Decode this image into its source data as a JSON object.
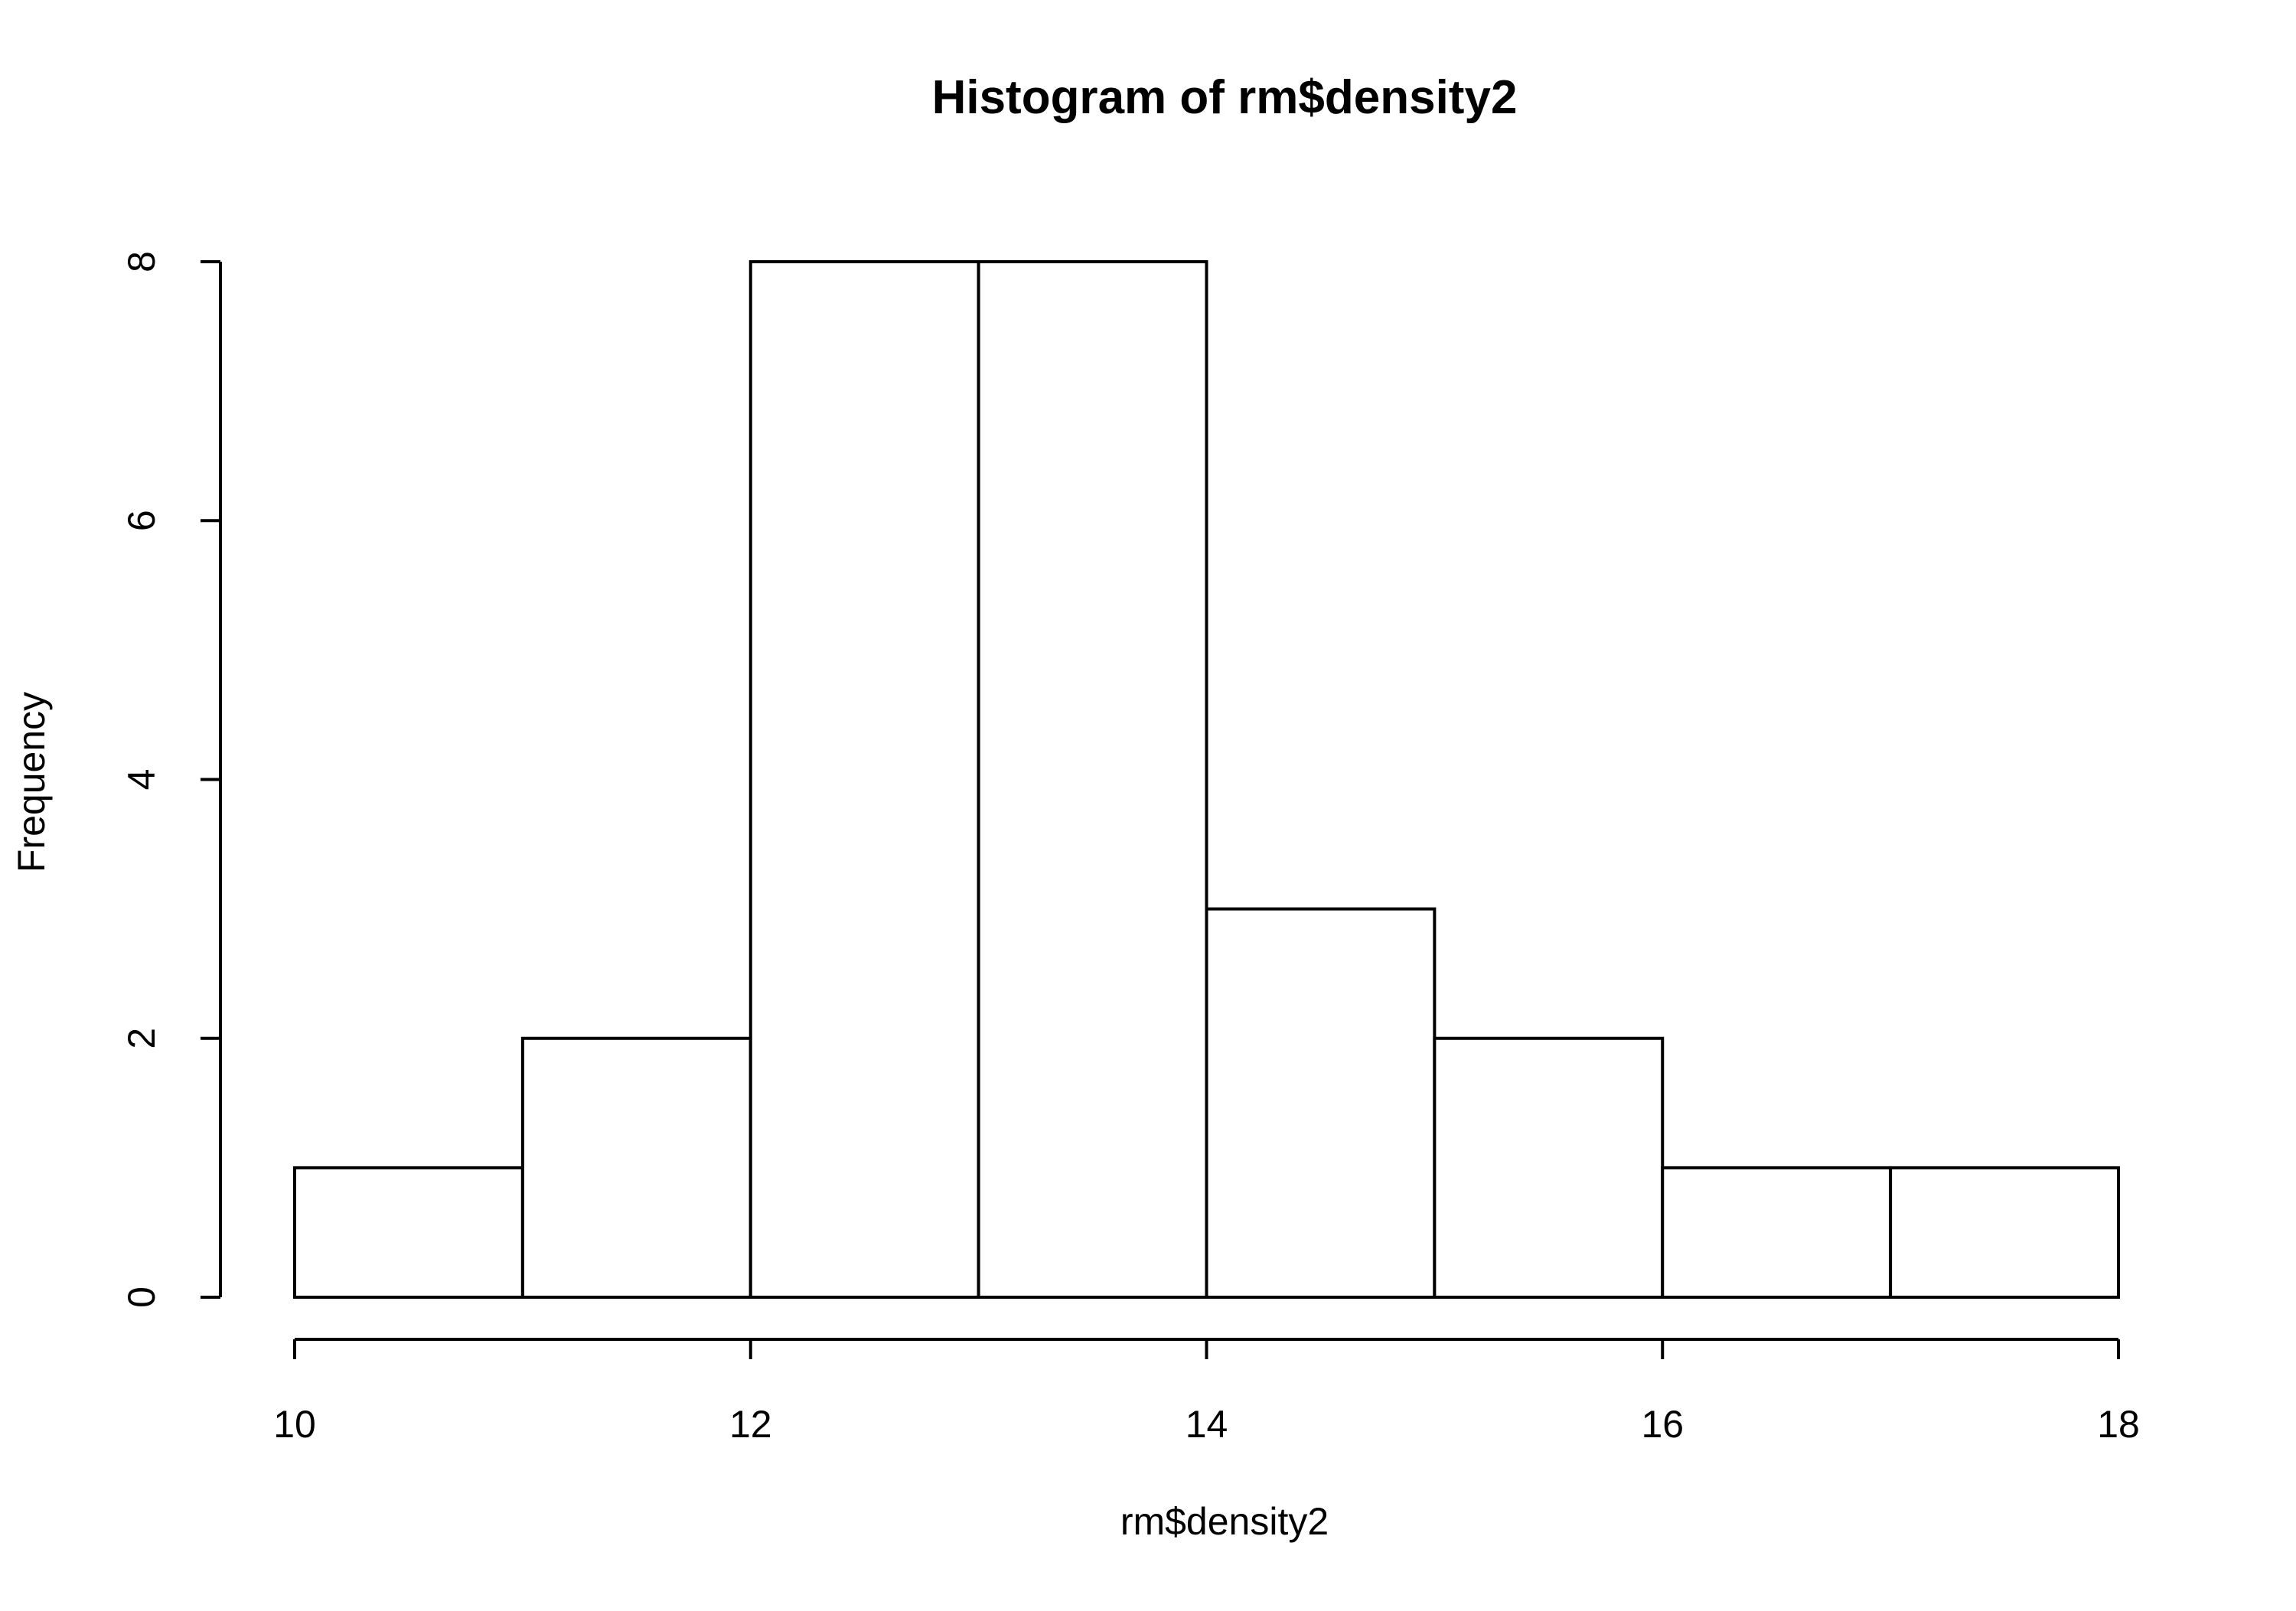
{
  "chart_data": {
    "type": "bar",
    "subtype": "histogram",
    "title": "Histogram of rm$density2",
    "xlabel": "rm$density2",
    "ylabel": "Frequency",
    "bins": [
      {
        "x0": 10,
        "x1": 11,
        "count": 1
      },
      {
        "x0": 11,
        "x1": 12,
        "count": 2
      },
      {
        "x0": 12,
        "x1": 13,
        "count": 8
      },
      {
        "x0": 13,
        "x1": 14,
        "count": 8
      },
      {
        "x0": 14,
        "x1": 15,
        "count": 3
      },
      {
        "x0": 15,
        "x1": 16,
        "count": 2
      },
      {
        "x0": 16,
        "x1": 17,
        "count": 1
      },
      {
        "x0": 17,
        "x1": 18,
        "count": 1
      }
    ],
    "xlim": [
      10,
      18
    ],
    "ylim": [
      0,
      8
    ],
    "x_ticks": [
      "10",
      "12",
      "14",
      "16",
      "18"
    ],
    "y_ticks": [
      "0",
      "2",
      "4",
      "6",
      "8"
    ],
    "grid": false,
    "fill_color": "#ffffff",
    "line_color": "#000000"
  }
}
